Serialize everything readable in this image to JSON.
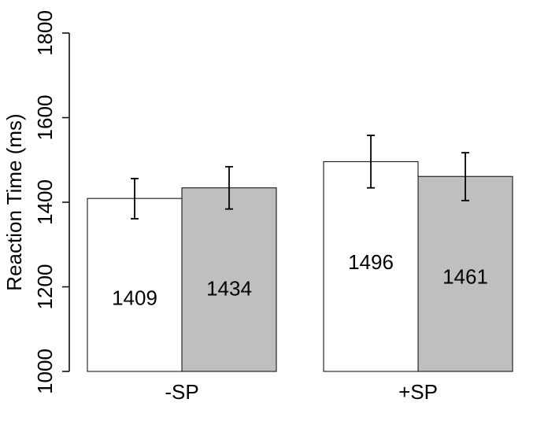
{
  "chart_data": {
    "type": "bar",
    "ylabel": "Reaction Time (ms)",
    "ylim": [
      1000,
      1800
    ],
    "yticks": [
      1000,
      1200,
      1400,
      1600,
      1800
    ],
    "categories": [
      "-SP",
      "+SP"
    ],
    "series": [
      {
        "values": [
          1409,
          1496
        ],
        "error_low": [
          1361,
          1434
        ],
        "error_high": [
          1456,
          1558
        ],
        "color": "#ffffff"
      },
      {
        "values": [
          1434,
          1461
        ],
        "error_low": [
          1384,
          1404
        ],
        "error_high": [
          1484,
          1517
        ],
        "color": "#bfbfbf"
      }
    ],
    "data_labels": [
      {
        "text": "1409",
        "y": 1170
      },
      {
        "text": "1434",
        "y": 1192
      },
      {
        "text": "1496",
        "y": 1255
      },
      {
        "text": "1461",
        "y": 1220
      }
    ],
    "grid": false,
    "legend": "none"
  }
}
